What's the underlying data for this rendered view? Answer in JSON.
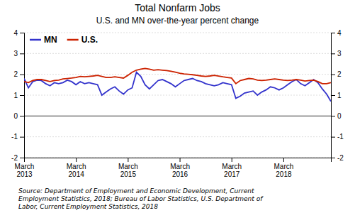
{
  "chart_data": {
    "type": "line",
    "title": "Total Nonfarm Jobs",
    "subtitle": "U.S. and MN over-the-year percent change",
    "source": "Source: Department of Employment and Economic Development, Current\nEmployment Statistics, 2018; Bureau of Labor Statistics, U.S. Department of\nLabor, Current Employment Statistics, 2018",
    "categories": [
      "March\n2013",
      null,
      null,
      null,
      null,
      null,
      null,
      null,
      null,
      null,
      null,
      null,
      "March\n2014",
      null,
      null,
      null,
      null,
      null,
      null,
      null,
      null,
      null,
      null,
      null,
      "March\n2015",
      null,
      null,
      null,
      null,
      null,
      null,
      null,
      null,
      null,
      null,
      null,
      "March\n2016",
      null,
      null,
      null,
      null,
      null,
      null,
      null,
      null,
      null,
      null,
      null,
      "March\n2017",
      null,
      null,
      null,
      null,
      null,
      null,
      null,
      null,
      null,
      null,
      null,
      "March\n2018",
      null,
      null,
      null,
      null,
      null,
      null,
      null,
      null,
      null,
      null,
      null
    ],
    "series": [
      {
        "name": "MN",
        "color": "#3333cc",
        "values": [
          1.8,
          1.35,
          1.65,
          1.72,
          1.7,
          1.55,
          1.45,
          1.6,
          1.55,
          1.6,
          1.72,
          1.65,
          1.5,
          1.65,
          1.55,
          1.6,
          1.55,
          1.5,
          1.0,
          1.15,
          1.3,
          1.4,
          1.2,
          1.05,
          1.25,
          1.35,
          2.1,
          1.9,
          1.5,
          1.3,
          1.5,
          1.7,
          1.75,
          1.65,
          1.55,
          1.4,
          1.55,
          1.7,
          1.75,
          1.8,
          1.7,
          1.65,
          1.55,
          1.5,
          1.45,
          1.5,
          1.6,
          1.55,
          1.5,
          0.85,
          0.95,
          1.1,
          1.15,
          1.2,
          1.0,
          1.15,
          1.25,
          1.4,
          1.35,
          1.25,
          1.35,
          1.5,
          1.65,
          1.75,
          1.55,
          1.45,
          1.6,
          1.75,
          1.6,
          1.3,
          1.05,
          0.7
        ]
      },
      {
        "name": "U.S.",
        "color": "#cc2200",
        "values": [
          1.65,
          1.6,
          1.7,
          1.75,
          1.75,
          1.7,
          1.65,
          1.7,
          1.72,
          1.78,
          1.8,
          1.82,
          1.85,
          1.9,
          1.88,
          1.9,
          1.92,
          1.95,
          1.9,
          1.85,
          1.85,
          1.88,
          1.85,
          1.82,
          1.95,
          2.1,
          2.2,
          2.25,
          2.28,
          2.25,
          2.2,
          2.22,
          2.2,
          2.18,
          2.15,
          2.1,
          2.05,
          2.02,
          2.0,
          1.98,
          1.95,
          1.92,
          1.9,
          1.92,
          1.95,
          1.92,
          1.88,
          1.85,
          1.82,
          1.55,
          1.7,
          1.75,
          1.8,
          1.78,
          1.72,
          1.7,
          1.72,
          1.75,
          1.78,
          1.75,
          1.72,
          1.7,
          1.72,
          1.75,
          1.72,
          1.68,
          1.7,
          1.72,
          1.65,
          1.55,
          1.55,
          1.6
        ]
      }
    ],
    "ylim": [
      -2,
      4
    ],
    "yticks": [
      -2,
      -1,
      0,
      1,
      2,
      3,
      4
    ],
    "y2lim": [
      -2,
      4
    ],
    "y2ticks": [
      -2,
      -1,
      0,
      1,
      2,
      3,
      4
    ],
    "grid": true,
    "legend": "upper-left"
  }
}
